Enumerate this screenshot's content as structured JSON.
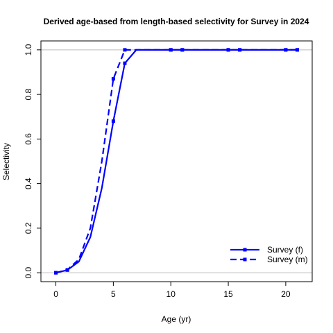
{
  "chart_data": {
    "type": "line",
    "title": "Derived age-based from length-based selectivity for Survey in 2024",
    "xlabel": "Age (yr)",
    "ylabel": "Selectivity",
    "xlim": [
      -1.3,
      22.3
    ],
    "ylim": [
      -0.04,
      1.04
    ],
    "xticks": [
      0,
      5,
      10,
      15,
      20
    ],
    "xtick_labels": [
      "0",
      "5",
      "10",
      "15",
      "20"
    ],
    "yticks": [
      0.0,
      0.2,
      0.4,
      0.6,
      0.8,
      1.0
    ],
    "ytick_labels": [
      "0.0",
      "0.2",
      "0.4",
      "0.6",
      "0.8",
      "1.0"
    ],
    "reference_lines": [
      0,
      1
    ],
    "reference_line_color": "#BEBEBE",
    "grid": false,
    "legend_position": "bottom-right",
    "series": [
      {
        "name": "Survey (f)",
        "color": "#0000FF",
        "dash": "solid",
        "marker": "square",
        "x": [
          0,
          1,
          2,
          3,
          4,
          5,
          6,
          7,
          8,
          9,
          10,
          11,
          12,
          13,
          14,
          15,
          16,
          17,
          18,
          19,
          20,
          21
        ],
        "y": [
          0.0,
          0.012,
          0.05,
          0.16,
          0.38,
          0.68,
          0.94,
          1.0,
          1.0,
          1.0,
          1.0,
          1.0,
          1.0,
          1.0,
          1.0,
          1.0,
          1.0,
          1.0,
          1.0,
          1.0,
          1.0,
          1.0
        ],
        "marker_x": [
          0,
          1,
          5,
          6,
          10,
          11,
          15,
          16,
          20,
          21
        ]
      },
      {
        "name": "Survey (m)",
        "color": "#0000FF",
        "dash": "dashed",
        "marker": "square",
        "x": [
          0,
          1,
          2,
          3,
          4,
          5,
          6,
          7,
          8,
          9,
          10,
          11,
          12,
          13,
          14,
          15,
          16,
          17,
          18,
          19,
          20,
          21
        ],
        "y": [
          0.0,
          0.013,
          0.06,
          0.2,
          0.5,
          0.87,
          1.0,
          1.0,
          1.0,
          1.0,
          1.0,
          1.0,
          1.0,
          1.0,
          1.0,
          1.0,
          1.0,
          1.0,
          1.0,
          1.0,
          1.0,
          1.0
        ],
        "marker_x": [
          0,
          1,
          5,
          6,
          10,
          11,
          15,
          16,
          20,
          21
        ]
      }
    ]
  }
}
